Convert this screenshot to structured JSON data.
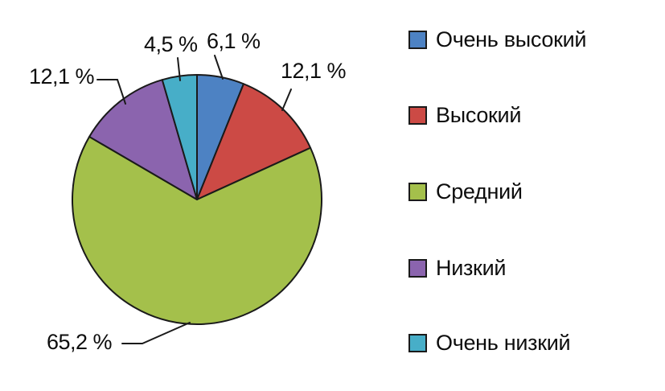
{
  "chart_data": {
    "type": "pie",
    "title": "",
    "unit": "%",
    "direction": "clockwise",
    "start_angle_deg": 0,
    "legend_position": "right",
    "outline_color": "#1a1a1a",
    "background": "#ffffff",
    "slices": [
      {
        "id": "very-high",
        "label": "Очень высокий",
        "value": 6.1,
        "display": "6,1 %",
        "color": "#4d82c3"
      },
      {
        "id": "high",
        "label": "Высокий",
        "value": 12.1,
        "display": "12,1 %",
        "color": "#cc4a45"
      },
      {
        "id": "medium",
        "label": "Средний",
        "value": 65.2,
        "display": "65,2 %",
        "color": "#a4c04b"
      },
      {
        "id": "low",
        "label": "Низкий",
        "value": 12.1,
        "display": "12,1 %",
        "color": "#8b64ae"
      },
      {
        "id": "very-low",
        "label": "Очень низкий",
        "value": 4.5,
        "display": "4,5 %",
        "color": "#47aec8"
      }
    ]
  }
}
